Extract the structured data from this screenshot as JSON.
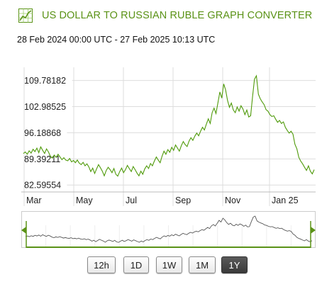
{
  "header": {
    "title": "US DOLLAR TO RUSSIAN RUBLE GRAPH CONVERTER",
    "range": "28 Feb 2024 00:00 UTC - 27 Feb 2025 10:13 UTC"
  },
  "buttons": [
    {
      "label": "12h",
      "active": false
    },
    {
      "label": "1D",
      "active": false
    },
    {
      "label": "1W",
      "active": false
    },
    {
      "label": "1M",
      "active": false
    },
    {
      "label": "1Y",
      "active": true
    }
  ],
  "colors": {
    "title": "#5a9216",
    "line": "#4f9a0a",
    "grid": "#dddddd",
    "navigator_line": "#555555",
    "navigator_handle": "#5a9216"
  },
  "chart_data": {
    "type": "line",
    "title": "",
    "xlabel": "",
    "ylabel": "",
    "x_tick_labels": [
      "Mar",
      "May",
      "Jul",
      "Sep",
      "Nov",
      "Jan 25"
    ],
    "y_tick_labels": [
      "109.78182",
      "102.98525",
      "96.18868",
      "89.39211",
      "82.59554"
    ],
    "ylim": [
      80.8,
      113.2
    ],
    "grid": true,
    "series": [
      {
        "values": [
          90.8,
          91.2,
          90.6,
          91.5,
          90.9,
          91.9,
          91.3,
          92.2,
          91.0,
          92.5,
          91.6,
          90.8,
          92.0,
          91.2,
          90.1,
          89.6,
          90.4,
          89.8,
          90.6,
          89.9,
          89.2,
          89.7,
          89.1,
          88.9,
          89.5,
          88.6,
          89.0,
          88.4,
          89.1,
          88.3,
          87.9,
          88.5,
          87.6,
          88.1,
          87.3,
          86.1,
          87.0,
          85.6,
          86.8,
          87.9,
          87.1,
          86.2,
          85.0,
          86.4,
          87.2,
          86.6,
          85.8,
          86.9,
          85.4,
          84.9,
          86.1,
          87.0,
          85.8,
          86.6,
          87.7,
          86.9,
          86.1,
          87.4,
          86.6,
          85.7,
          85.0,
          86.2,
          85.4,
          86.8,
          87.6,
          86.9,
          88.2,
          87.6,
          88.8,
          89.9,
          89.1,
          88.4,
          90.1,
          91.4,
          90.6,
          91.8,
          91.1,
          92.4,
          91.6,
          93.0,
          92.2,
          91.4,
          92.8,
          93.9,
          93.1,
          92.6,
          94.0,
          94.9,
          94.2,
          95.3,
          96.1,
          95.4,
          96.6,
          97.6,
          96.9,
          98.4,
          99.8,
          98.6,
          101.4,
          102.6,
          101.2,
          103.9,
          106.8,
          105.2,
          108.9,
          107.3,
          104.6,
          102.8,
          103.9,
          102.1,
          101.4,
          102.9,
          101.8,
          103.2,
          102.4,
          100.9,
          102.1,
          100.3,
          100.6,
          105.6,
          110.1,
          111.0,
          106.2,
          105.0,
          104.2,
          103.5,
          102.2,
          101.8,
          100.9,
          100.4,
          100.6,
          99.7,
          98.9,
          99.4,
          98.6,
          99.0,
          97.6,
          96.8,
          96.1,
          96.6,
          95.8,
          93.2,
          92.0,
          89.8,
          88.8,
          88.1,
          87.2,
          86.4,
          87.6,
          86.2,
          85.5,
          86.6
        ]
      }
    ]
  }
}
